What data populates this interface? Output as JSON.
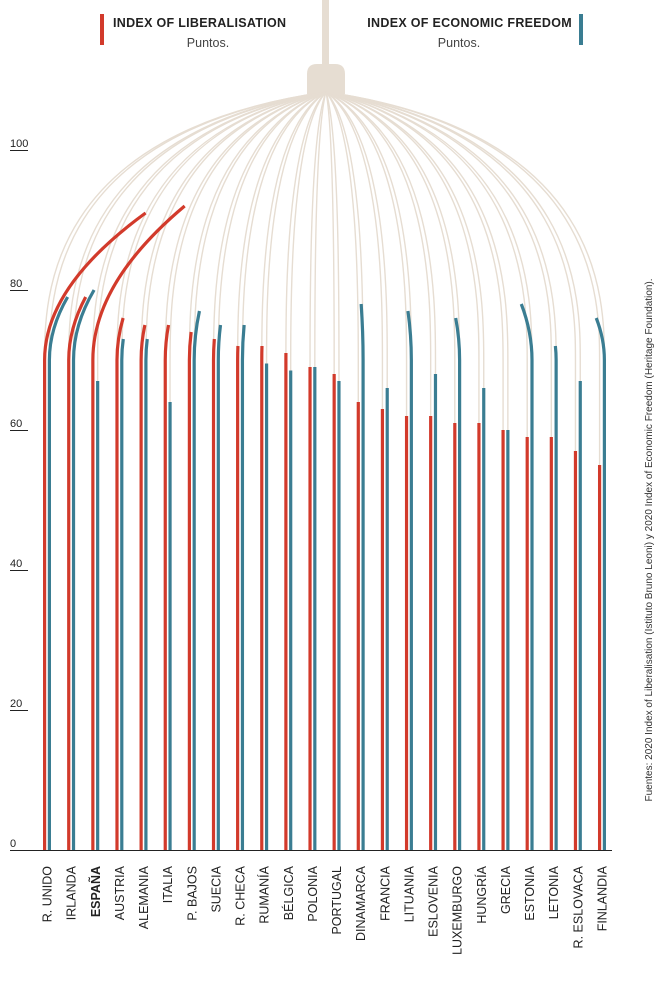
{
  "colors": {
    "liberalisation": "#d23a2b",
    "freedom": "#3a7d92",
    "cage": "#e6ddd2",
    "axis": "#222222"
  },
  "legend": {
    "liberalisation": {
      "title": "INDEX OF LIBERALISATION",
      "subtitle": "Puntos."
    },
    "freedom": {
      "title": "INDEX OF ECONOMIC FREEDOM",
      "subtitle": "Puntos."
    }
  },
  "source": "Fuentes: 2020 Index of Liberalisation (Istituto Bruno Leoni)  y 2020 Index of Economic Freedom (Heritage Foundation).",
  "chart_data": {
    "type": "bar",
    "title": "",
    "xlabel": "",
    "ylabel": "",
    "ylim": [
      0,
      100
    ],
    "yticks": [
      "0",
      "20",
      "40",
      "60",
      "80",
      "100"
    ],
    "highlight": "ESPAÑA",
    "categories": [
      "R. UNIDO",
      "IRLANDA",
      "ESPAÑA",
      "AUSTRIA",
      "ALEMANIA",
      "ITALIA",
      "P. BAJOS",
      "SUECIA",
      "R. CHECA",
      "RUMANÍA",
      "BÉLGICA",
      "POLONIA",
      "PORTUGAL",
      "DINAMARCA",
      "FRANCIA",
      "LITUANIA",
      "ESLOVENIA",
      "LUXEMBURGO",
      "HUNGRÍA",
      "GRECIA",
      "ESTONIA",
      "LETONIA",
      "R. ESLOVACA",
      "FINLANDIA"
    ],
    "series": [
      {
        "name": "INDEX OF LIBERALISATION",
        "values": [
          91,
          79,
          92,
          76,
          75,
          75,
          74,
          73,
          72,
          72,
          71,
          69,
          68,
          64,
          63,
          62,
          62,
          61,
          61,
          60,
          59,
          59,
          57,
          55
        ]
      },
      {
        "name": "INDEX OF ECONOMIC FREEDOM",
        "values": [
          79,
          80,
          67,
          73,
          73,
          64,
          77,
          75,
          75,
          69.5,
          68.5,
          69,
          67,
          78,
          66,
          77,
          68,
          76,
          66,
          60,
          78,
          72,
          67,
          76
        ]
      }
    ]
  }
}
